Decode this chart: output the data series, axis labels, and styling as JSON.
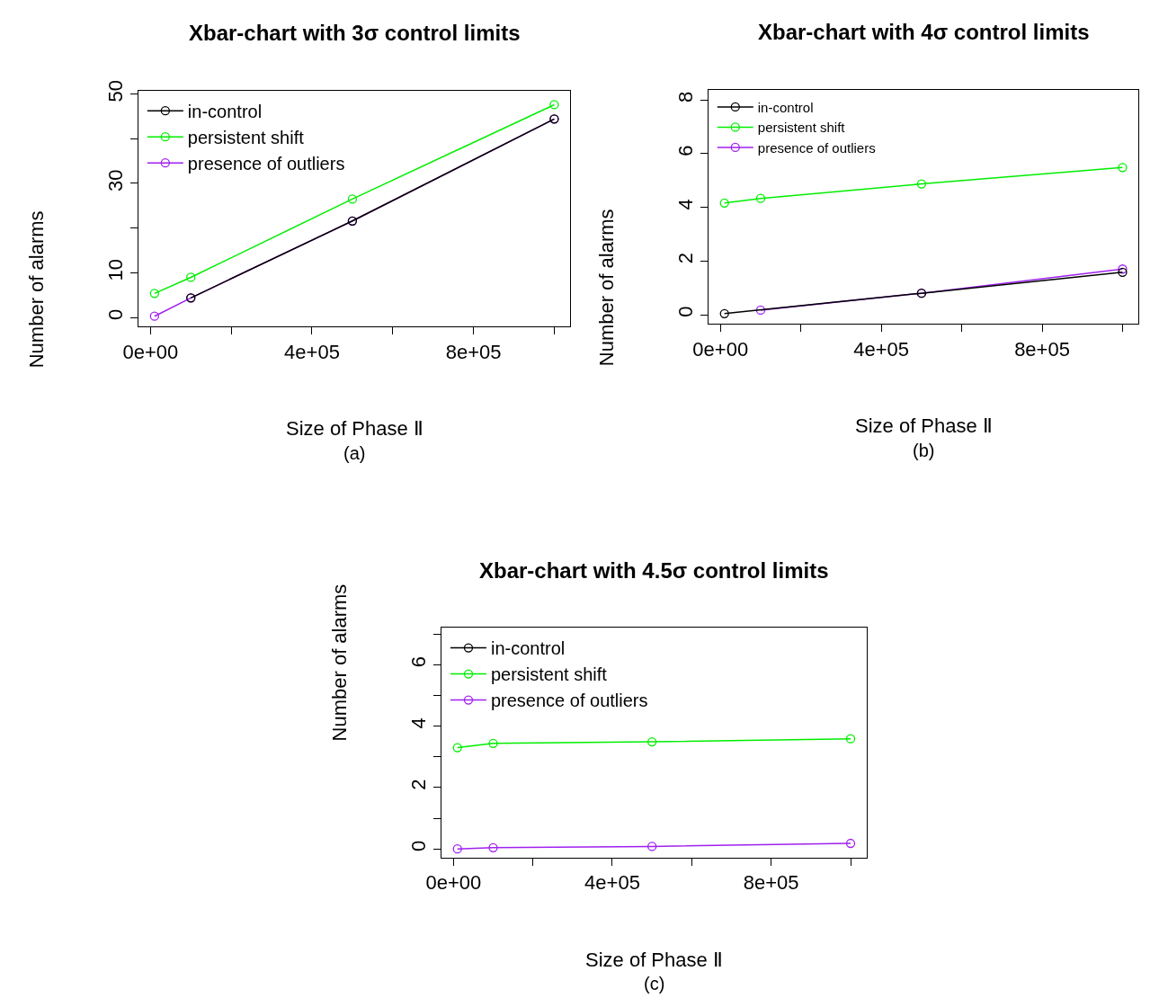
{
  "chart_data": [
    {
      "type": "line",
      "title": "Xbar-chart with 3σ control limits",
      "xlabel": "Size of Phase Ⅱ",
      "ylabel": "Number of alarms",
      "annotations": [
        "(a)"
      ],
      "marker": "circle",
      "line_style": "solid",
      "legend": "top left",
      "x": [
        10000,
        100000,
        500000,
        1000000
      ],
      "xlim": [
        -29600,
        1039600
      ],
      "xticks": [
        {
          "value": 0,
          "label": "0e+00"
        },
        {
          "value": 200000,
          "label": null
        },
        {
          "value": 400000,
          "label": "4e+05"
        },
        {
          "value": 600000,
          "label": null
        },
        {
          "value": 800000,
          "label": "8e+05"
        },
        {
          "value": 1000000,
          "label": null
        }
      ],
      "ylim": [
        -2,
        50.7
      ],
      "yticks": [
        0,
        10,
        {
          "value": 20,
          "label": null
        },
        30,
        {
          "value": 40,
          "label": null
        },
        50
      ],
      "series": [
        {
          "name": "in-control",
          "color": "#000000",
          "values": [
            null,
            4.4,
            21.6,
            44.4
          ]
        },
        {
          "name": "persistent shift",
          "color": "#00ee00",
          "values": [
            5.4,
            9.0,
            26.5,
            47.6
          ]
        },
        {
          "name": "presence of outliers",
          "color": "#a020f0",
          "values": [
            0.3,
            4.4,
            21.6,
            44.4
          ]
        }
      ]
    },
    {
      "type": "line",
      "title": "Xbar-chart with 4σ control limits",
      "xlabel": "Size of Phase Ⅱ",
      "ylabel": "Number of alarms",
      "annotations": [
        "(b)"
      ],
      "marker": "circle",
      "line_style": "solid",
      "legend": "top left",
      "x": [
        10000,
        100000,
        500000,
        1000000
      ],
      "xlim": [
        -29600,
        1039600
      ],
      "xticks": [
        {
          "value": 0,
          "label": "0e+00"
        },
        {
          "value": 200000,
          "label": null
        },
        {
          "value": 400000,
          "label": "4e+05"
        },
        {
          "value": 600000,
          "label": null
        },
        {
          "value": 800000,
          "label": "8e+05"
        },
        {
          "value": 1000000,
          "label": null
        }
      ],
      "ylim": [
        -0.34,
        8.37
      ],
      "yticks": [
        0,
        2,
        4,
        6,
        8
      ],
      "series": [
        {
          "name": "in-control",
          "color": "#000000",
          "values": [
            0.04,
            null,
            0.8,
            1.58
          ]
        },
        {
          "name": "persistent shift",
          "color": "#00ee00",
          "values": [
            4.16,
            4.33,
            4.87,
            5.48
          ]
        },
        {
          "name": "presence of outliers",
          "color": "#a020f0",
          "values": [
            null,
            0.17,
            0.8,
            1.7
          ]
        }
      ]
    },
    {
      "type": "line",
      "title": "Xbar-chart with 4.5σ control limits",
      "xlabel": "Size of Phase Ⅱ",
      "ylabel": "Number of alarms",
      "annotations": [
        "(c)"
      ],
      "marker": "circle",
      "line_style": "solid",
      "legend": "top left",
      "x": [
        10000,
        100000,
        500000,
        1000000
      ],
      "xlim": [
        -29600,
        1039600
      ],
      "xticks": [
        {
          "value": 0,
          "label": "0e+00"
        },
        {
          "value": 200000,
          "label": null
        },
        {
          "value": 400000,
          "label": "4e+05"
        },
        {
          "value": 600000,
          "label": null
        },
        {
          "value": 800000,
          "label": "8e+05"
        },
        {
          "value": 1000000,
          "label": null
        }
      ],
      "ylim": [
        -0.28,
        7.2
      ],
      "yticks": [
        0,
        {
          "value": 1,
          "label": null
        },
        2,
        {
          "value": 3,
          "label": null
        },
        4,
        {
          "value": 5,
          "label": null
        },
        6,
        {
          "value": 7,
          "label": null
        }
      ],
      "series": [
        {
          "name": "in-control",
          "color": "#000000",
          "values": [
            null,
            null,
            null,
            null
          ]
        },
        {
          "name": "persistent shift",
          "color": "#00ee00",
          "values": [
            3.3,
            3.44,
            3.49,
            3.59
          ]
        },
        {
          "name": "presence of outliers",
          "color": "#a020f0",
          "values": [
            0.0,
            0.04,
            0.08,
            0.18
          ]
        }
      ]
    }
  ]
}
